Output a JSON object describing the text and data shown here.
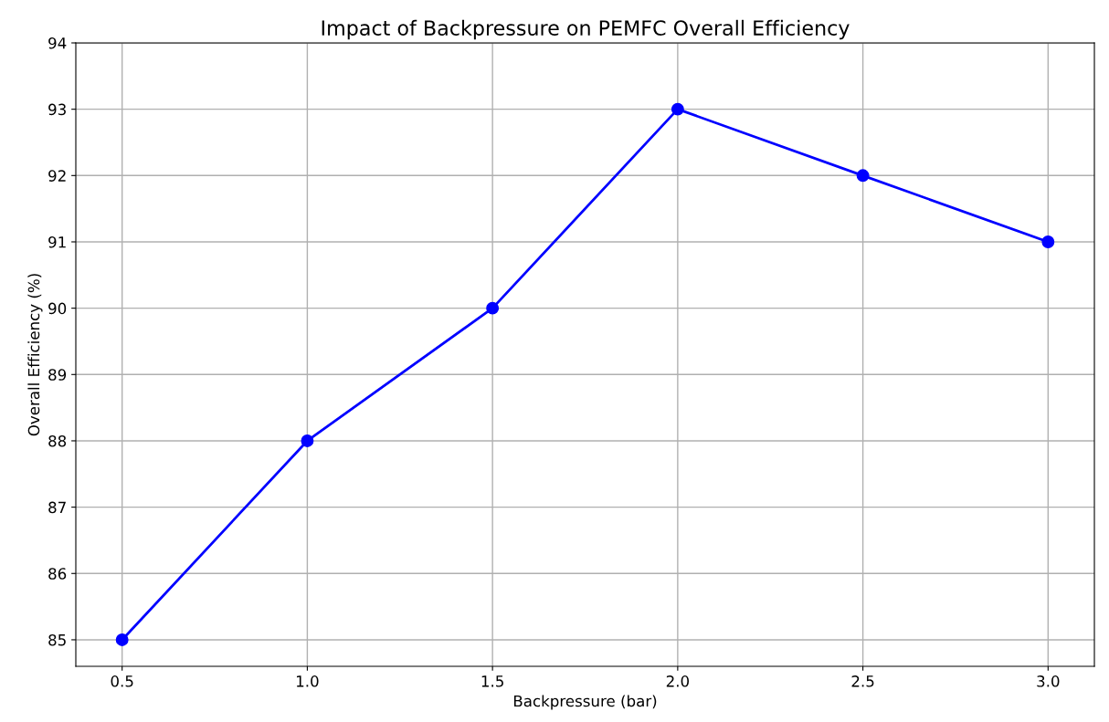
{
  "chart_data": {
    "type": "line",
    "title": "Impact of Backpressure on PEMFC Overall Efficiency",
    "xlabel": "Backpressure (bar)",
    "ylabel": "Overall Efficiency (%)",
    "x": [
      0.5,
      1.0,
      1.5,
      2.0,
      2.5,
      3.0
    ],
    "series": [
      {
        "color": "#0000ff",
        "values": [
          85,
          88,
          90,
          93,
          92,
          91
        ]
      }
    ],
    "xlim": [
      0.375,
      3.125
    ],
    "xticks": [
      {
        "value": 0.5,
        "label": "0.5"
      },
      {
        "value": 1.0,
        "label": "1.0"
      },
      {
        "value": 1.5,
        "label": "1.5"
      },
      {
        "value": 2.0,
        "label": "2.0"
      },
      {
        "value": 2.5,
        "label": "2.5"
      },
      {
        "value": 3.0,
        "label": "3.0"
      }
    ],
    "ylim": [
      84.6,
      94
    ],
    "yticks": [
      85,
      86,
      87,
      88,
      89,
      90,
      91,
      92,
      93,
      94
    ],
    "grid": true,
    "marker": "circle",
    "line_style": "solid"
  }
}
